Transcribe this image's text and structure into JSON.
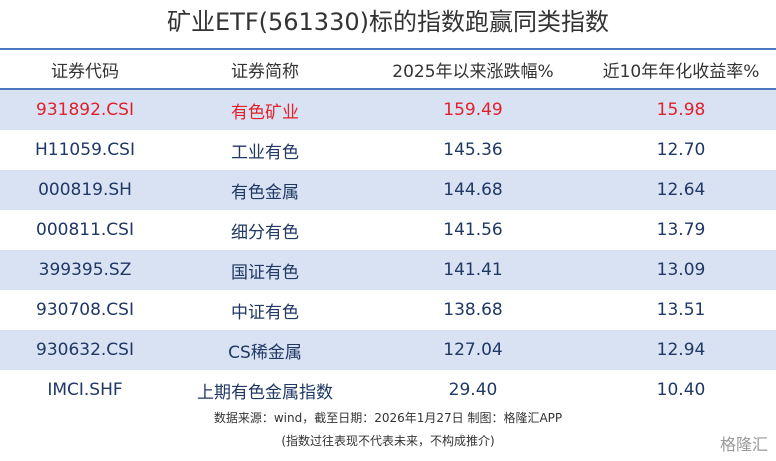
{
  "title": "矿业ETF(561330)标的指数跑赢同类指数",
  "table": {
    "headers": [
      "证券代码",
      "证券简称",
      "2025年以来涨跌幅%",
      "近10年年化收益率%"
    ],
    "rows": [
      [
        "931892.CSI",
        "有色矿业",
        "159.49",
        "15.98"
      ],
      [
        "H11059.CSI",
        "工业有色",
        "145.36",
        "12.70"
      ],
      [
        "000819.SH",
        "有色金属",
        "144.68",
        "12.64"
      ],
      [
        "000811.CSI",
        "细分有色",
        "141.56",
        "13.79"
      ],
      [
        "399395.SZ",
        "国证有色",
        "141.41",
        "13.09"
      ],
      [
        "930708.CSI",
        "中证有色",
        "138.68",
        "13.51"
      ],
      [
        "930632.CSI",
        "CS稀金属",
        "127.04",
        "12.94"
      ],
      [
        "IMCI.SHF",
        "上期有色金属指数",
        "29.40",
        "10.40"
      ]
    ]
  },
  "footer": {
    "source": "数据来源：wind，截至日期：2026年1月27日 制图：格隆汇APP",
    "note": "(指数过往表现不代表未来，不构成推介)"
  },
  "watermark": "格隆汇"
}
